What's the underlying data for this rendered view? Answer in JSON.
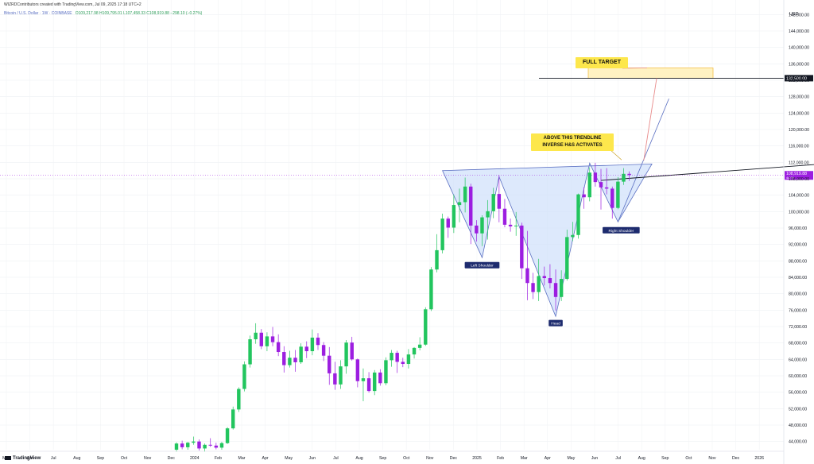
{
  "header": {
    "created_by": "WIZRDContributors created with TradingView.com, Jul 09, 2025 17:18 UTC+2",
    "symbol_line": "Bitcoin / U.S. Dollar · 1W · COINBASE",
    "ohlc": "O109,217.98  H109,795.01  L107,458.33  C108,919.88  −298.10 (−0.27%)"
  },
  "currency": "USD",
  "price_axis_ticks": [
    44000,
    48000,
    52000,
    56000,
    60000,
    64000,
    68000,
    72000,
    76000,
    80000,
    84000,
    88000,
    92000,
    96000,
    100000,
    104000,
    108000,
    112000,
    116000,
    120000,
    124000,
    128000,
    132000,
    136000,
    140000,
    144000,
    148000
  ],
  "price_axis_labels": [
    "44,000.00",
    "48,000.00",
    "52,000.00",
    "56,000.00",
    "60,000.00",
    "64,000.00",
    "68,000.00",
    "72,000.00",
    "76,000.00",
    "80,000.00",
    "84,000.00",
    "88,000.00",
    "92,000.00",
    "96,000.00",
    "100,000.00",
    "104,000.00",
    "108,000.00",
    "112,000.00",
    "116,000.00",
    "120,000.00",
    "124,000.00",
    "128,000.00",
    "132,000.00",
    "136,000.00",
    "140,000.00",
    "144,000.00",
    "148,000.00"
  ],
  "time_axis_labels": [
    "May",
    "Jun",
    "Jul",
    "Aug",
    "Sep",
    "Oct",
    "Nov",
    "Dec",
    "2024",
    "Feb",
    "Mar",
    "Apr",
    "May",
    "Jun",
    "Jul",
    "Aug",
    "Sep",
    "Oct",
    "Nov",
    "Dec",
    "2025",
    "Feb",
    "Mar",
    "Apr",
    "May",
    "Jun",
    "Jul",
    "Aug",
    "Sep",
    "Oct",
    "Nov",
    "Dec",
    "2026"
  ],
  "target_level_label": "132,500.00",
  "current_price_label": "108,919.88",
  "current_price_sub": "4d 9h",
  "annotations": {
    "full_target": "FULL TARGET",
    "trendline_note_1": "ABOVE THIS TRENDLINE",
    "trendline_note_2": "INVERSE H&S ACTIVATES",
    "left_shoulder": "Left Shoulder",
    "head": "Head",
    "right_shoulder": "Right Shoulder"
  },
  "branding": "TradingView",
  "colors": {
    "up": "#22c55e",
    "down": "#9c1ee0",
    "pattern_fill": "#cfe0fb",
    "pattern_line": "#5a6fc2",
    "callout": "#fde74c",
    "target_box": "#fff2c2",
    "target_border": "#f3b733",
    "projection": "#e88b8b",
    "current_badge": "#9c1ee0"
  },
  "chart_data": {
    "type": "candlestick",
    "timeframe": "1W",
    "x_unit": "week",
    "candles_ohlc": [
      [
        42000,
        43800,
        41500,
        43500
      ],
      [
        43500,
        44200,
        42100,
        42600
      ],
      [
        42600,
        43900,
        42000,
        43700
      ],
      [
        43700,
        45200,
        43200,
        44000
      ],
      [
        44000,
        44500,
        41800,
        42300
      ],
      [
        42300,
        43500,
        41500,
        43200
      ],
      [
        43200,
        44800,
        42700,
        43000
      ],
      [
        43000,
        43700,
        42100,
        42500
      ],
      [
        42500,
        43900,
        42000,
        43600
      ],
      [
        43600,
        47500,
        43400,
        47200
      ],
      [
        47200,
        52500,
        46900,
        51800
      ],
      [
        51800,
        57200,
        51200,
        56800
      ],
      [
        56800,
        63500,
        56200,
        62800
      ],
      [
        62800,
        69800,
        62000,
        68900
      ],
      [
        68900,
        72800,
        67800,
        70500
      ],
      [
        70500,
        71400,
        66500,
        67200
      ],
      [
        67200,
        70600,
        66000,
        69600
      ],
      [
        69600,
        71900,
        67200,
        68200
      ],
      [
        68200,
        70100,
        64800,
        65800
      ],
      [
        65800,
        67200,
        60800,
        62600
      ],
      [
        62600,
        66100,
        62000,
        64400
      ],
      [
        64400,
        66300,
        61000,
        63300
      ],
      [
        63300,
        67900,
        62900,
        67100
      ],
      [
        67100,
        68400,
        64300,
        66000
      ],
      [
        66000,
        71300,
        65000,
        69300
      ],
      [
        69300,
        70400,
        66300,
        67500
      ],
      [
        67500,
        68200,
        63600,
        64900
      ],
      [
        64900,
        67000,
        57800,
        60600
      ],
      [
        60600,
        63400,
        56600,
        57900
      ],
      [
        57900,
        63800,
        56800,
        62300
      ],
      [
        62300,
        68700,
        60500,
        68100
      ],
      [
        68100,
        69500,
        63700,
        64000
      ],
      [
        64000,
        64200,
        57200,
        58700
      ],
      [
        58700,
        61800,
        53800,
        59400
      ],
      [
        59400,
        60900,
        55900,
        56300
      ],
      [
        56300,
        61400,
        55300,
        60800
      ],
      [
        60800,
        61600,
        57600,
        58200
      ],
      [
        58200,
        64500,
        57700,
        63800
      ],
      [
        63800,
        66300,
        62200,
        65600
      ],
      [
        65600,
        66100,
        60700,
        63400
      ],
      [
        63400,
        64400,
        62100,
        62900
      ],
      [
        62900,
        66500,
        61800,
        65200
      ],
      [
        65200,
        67000,
        64200,
        66800
      ],
      [
        66800,
        69400,
        66200,
        67600
      ],
      [
        67600,
        76700,
        67300,
        76200
      ],
      [
        76200,
        86500,
        75800,
        85900
      ],
      [
        85900,
        94500,
        85200,
        90600
      ],
      [
        90600,
        99500,
        89800,
        98300
      ],
      [
        98300,
        98800,
        93600,
        96100
      ],
      [
        96100,
        104100,
        94800,
        101600
      ],
      [
        101600,
        105600,
        97400,
        102300
      ],
      [
        102300,
        108300,
        99800,
        106100
      ],
      [
        106100,
        106800,
        92100,
        96600
      ],
      [
        96600,
        97900,
        92700,
        94700
      ],
      [
        94700,
        99100,
        91600,
        98600
      ],
      [
        98600,
        102800,
        93200,
        100100
      ],
      [
        100100,
        105800,
        98400,
        104300
      ],
      [
        104300,
        108900,
        97400,
        100700
      ],
      [
        100700,
        103100,
        96200,
        96800
      ],
      [
        96800,
        98300,
        95100,
        96400
      ],
      [
        96400,
        99900,
        94100,
        96600
      ],
      [
        96600,
        97300,
        83600,
        86200
      ],
      [
        86200,
        95300,
        78400,
        82600
      ],
      [
        82600,
        85100,
        78700,
        80400
      ],
      [
        80400,
        88500,
        78200,
        84300
      ],
      [
        84300,
        86600,
        82000,
        83800
      ],
      [
        83800,
        87200,
        81300,
        82600
      ],
      [
        82600,
        85900,
        75900,
        79200
      ],
      [
        79200,
        85700,
        78200,
        83600
      ],
      [
        83600,
        95600,
        83200,
        93800
      ],
      [
        93800,
        97500,
        92800,
        94300
      ],
      [
        94300,
        104400,
        93400,
        104200
      ],
      [
        104200,
        106000,
        100700,
        103500
      ],
      [
        103500,
        110800,
        102500,
        109500
      ],
      [
        109500,
        111900,
        106100,
        107200
      ],
      [
        107200,
        110400,
        100500,
        105900
      ],
      [
        105900,
        110600,
        104200,
        105600
      ],
      [
        105600,
        106100,
        98300,
        100900
      ],
      [
        100900,
        108400,
        100600,
        107300
      ],
      [
        107300,
        110600,
        106500,
        109200
      ],
      [
        109200,
        109800,
        107500,
        108900
      ]
    ],
    "current_price": 108919.88,
    "target_price": 132500,
    "target_box_range": [
      132500,
      135000
    ],
    "neckline": {
      "from": [
        75,
        107600
      ],
      "to": [
        118,
        112000
      ]
    },
    "pattern": {
      "left_shoulder_low": 88800,
      "head_low": 74500,
      "right_shoulder_low": 97500
    },
    "y_range": [
      42000,
      150000
    ]
  }
}
